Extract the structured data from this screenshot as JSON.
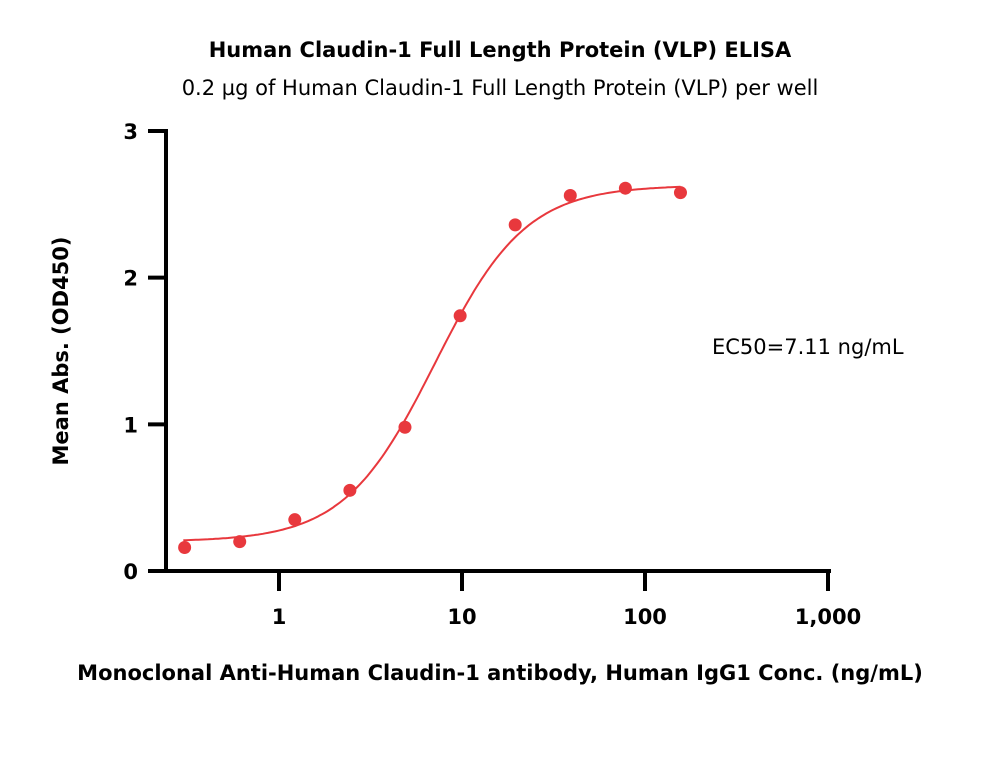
{
  "chart_data": {
    "type": "scatter",
    "title": "Human Claudin-1 Full Length Protein (VLP) ELISA",
    "subtitle": "0.2 µg of Human Claudin-1 Full Length Protein (VLP) per well",
    "xlabel": "Monoclonal Anti-Human Claudin-1 antibody, Human IgG1 Conc. (ng/mL)",
    "ylabel": "Mean Abs. (OD450)",
    "xscale": "log",
    "xlim": [
      0.24,
      1000
    ],
    "ylim": [
      0,
      3
    ],
    "xticks": [
      {
        "value": 1,
        "label": "1"
      },
      {
        "value": 10,
        "label": "10"
      },
      {
        "value": 100,
        "label": "100"
      },
      {
        "value": 1000,
        "label": "1,000"
      }
    ],
    "yticks": [
      {
        "value": 0,
        "label": "0"
      },
      {
        "value": 1,
        "label": "1"
      },
      {
        "value": 2,
        "label": "2"
      },
      {
        "value": 3,
        "label": "3"
      }
    ],
    "annotation": "EC50=7.11 ng/mL",
    "color": "#e8383d",
    "series": [
      {
        "name": "Mean Abs.",
        "x": [
          0.305,
          0.61,
          1.22,
          2.44,
          4.88,
          9.77,
          19.53,
          39.06,
          78.13,
          156.25
        ],
        "y": [
          0.16,
          0.2,
          0.35,
          0.55,
          0.98,
          1.74,
          2.36,
          2.56,
          2.61,
          2.58
        ]
      }
    ],
    "fit": {
      "model": "4PL",
      "bottom": 0.2,
      "top": 2.63,
      "ec50": 7.11,
      "hill": 1.75,
      "xrange": [
        0.3,
        156.25
      ]
    }
  }
}
